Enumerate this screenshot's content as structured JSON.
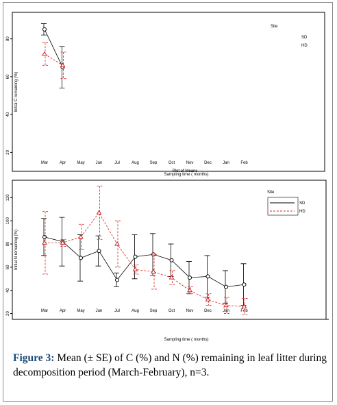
{
  "chart_data": [
    {
      "type": "line",
      "annotation": "Plot of Means",
      "ylabel": "Initial C remaining (%)",
      "xlabel": "Sampling time ( months)",
      "categories": [
        "Mar",
        "Apr",
        "May",
        "Jun",
        "Jul",
        "Aug",
        "Sep",
        "Oct",
        "Nov",
        "Dec",
        "Jan",
        "Feb"
      ],
      "ylim": [
        10,
        94
      ],
      "yticks": [
        20,
        40,
        60,
        80
      ],
      "legend_title": "Site",
      "legend_style": "text",
      "legend": "upper right",
      "series": [
        {
          "name": "SD",
          "color": "#000000",
          "dash": false,
          "marker": "circle",
          "values": [
            85,
            65,
            null,
            null,
            null,
            null,
            null,
            null,
            null,
            null,
            null,
            null
          ],
          "errors": [
            3,
            11,
            null,
            null,
            null,
            null,
            null,
            null,
            null,
            null,
            null,
            null
          ]
        },
        {
          "name": "HD",
          "color": "#d62020",
          "dash": true,
          "marker": "triangle",
          "values": [
            72,
            66,
            null,
            null,
            null,
            null,
            null,
            null,
            null,
            null,
            null,
            null
          ],
          "errors": [
            6,
            7,
            null,
            null,
            null,
            null,
            null,
            null,
            null,
            null,
            null,
            null
          ]
        }
      ]
    },
    {
      "type": "line",
      "ylabel": "Initial N remaining (%)",
      "xlabel": "Sampling time ( months)",
      "categories": [
        "Mar",
        "Apr",
        "May",
        "Jun",
        "Jul",
        "Aug",
        "Sep",
        "Oct",
        "Nov",
        "Dec",
        "Jan",
        "Feb"
      ],
      "ylim": [
        15,
        135
      ],
      "yticks": [
        20,
        40,
        60,
        80,
        100,
        120
      ],
      "legend_title": "Site",
      "legend_style": "lines",
      "legend": "upper right",
      "series": [
        {
          "name": "SD",
          "color": "#000000",
          "dash": false,
          "marker": "circle",
          "values": [
            86,
            82,
            68,
            74,
            49,
            69,
            71,
            66,
            51,
            52,
            43,
            45
          ],
          "errors": [
            16,
            21,
            20,
            13,
            6,
            19,
            18,
            14,
            14,
            18,
            14,
            18
          ]
        },
        {
          "name": "HD",
          "color": "#d62020",
          "dash": true,
          "marker": "triangle",
          "values": [
            81,
            81,
            86,
            107,
            80,
            58,
            56,
            51,
            40,
            32,
            27,
            26
          ],
          "errors": [
            27,
            3,
            11,
            23,
            20,
            4,
            15,
            6,
            3,
            5,
            7,
            7
          ]
        }
      ]
    }
  ],
  "caption": {
    "label": "Figure 3:",
    "text": "Mean (± SE) of C (%) and N (%) remaining in leaf litter during decomposition period (March-February), n=3."
  }
}
